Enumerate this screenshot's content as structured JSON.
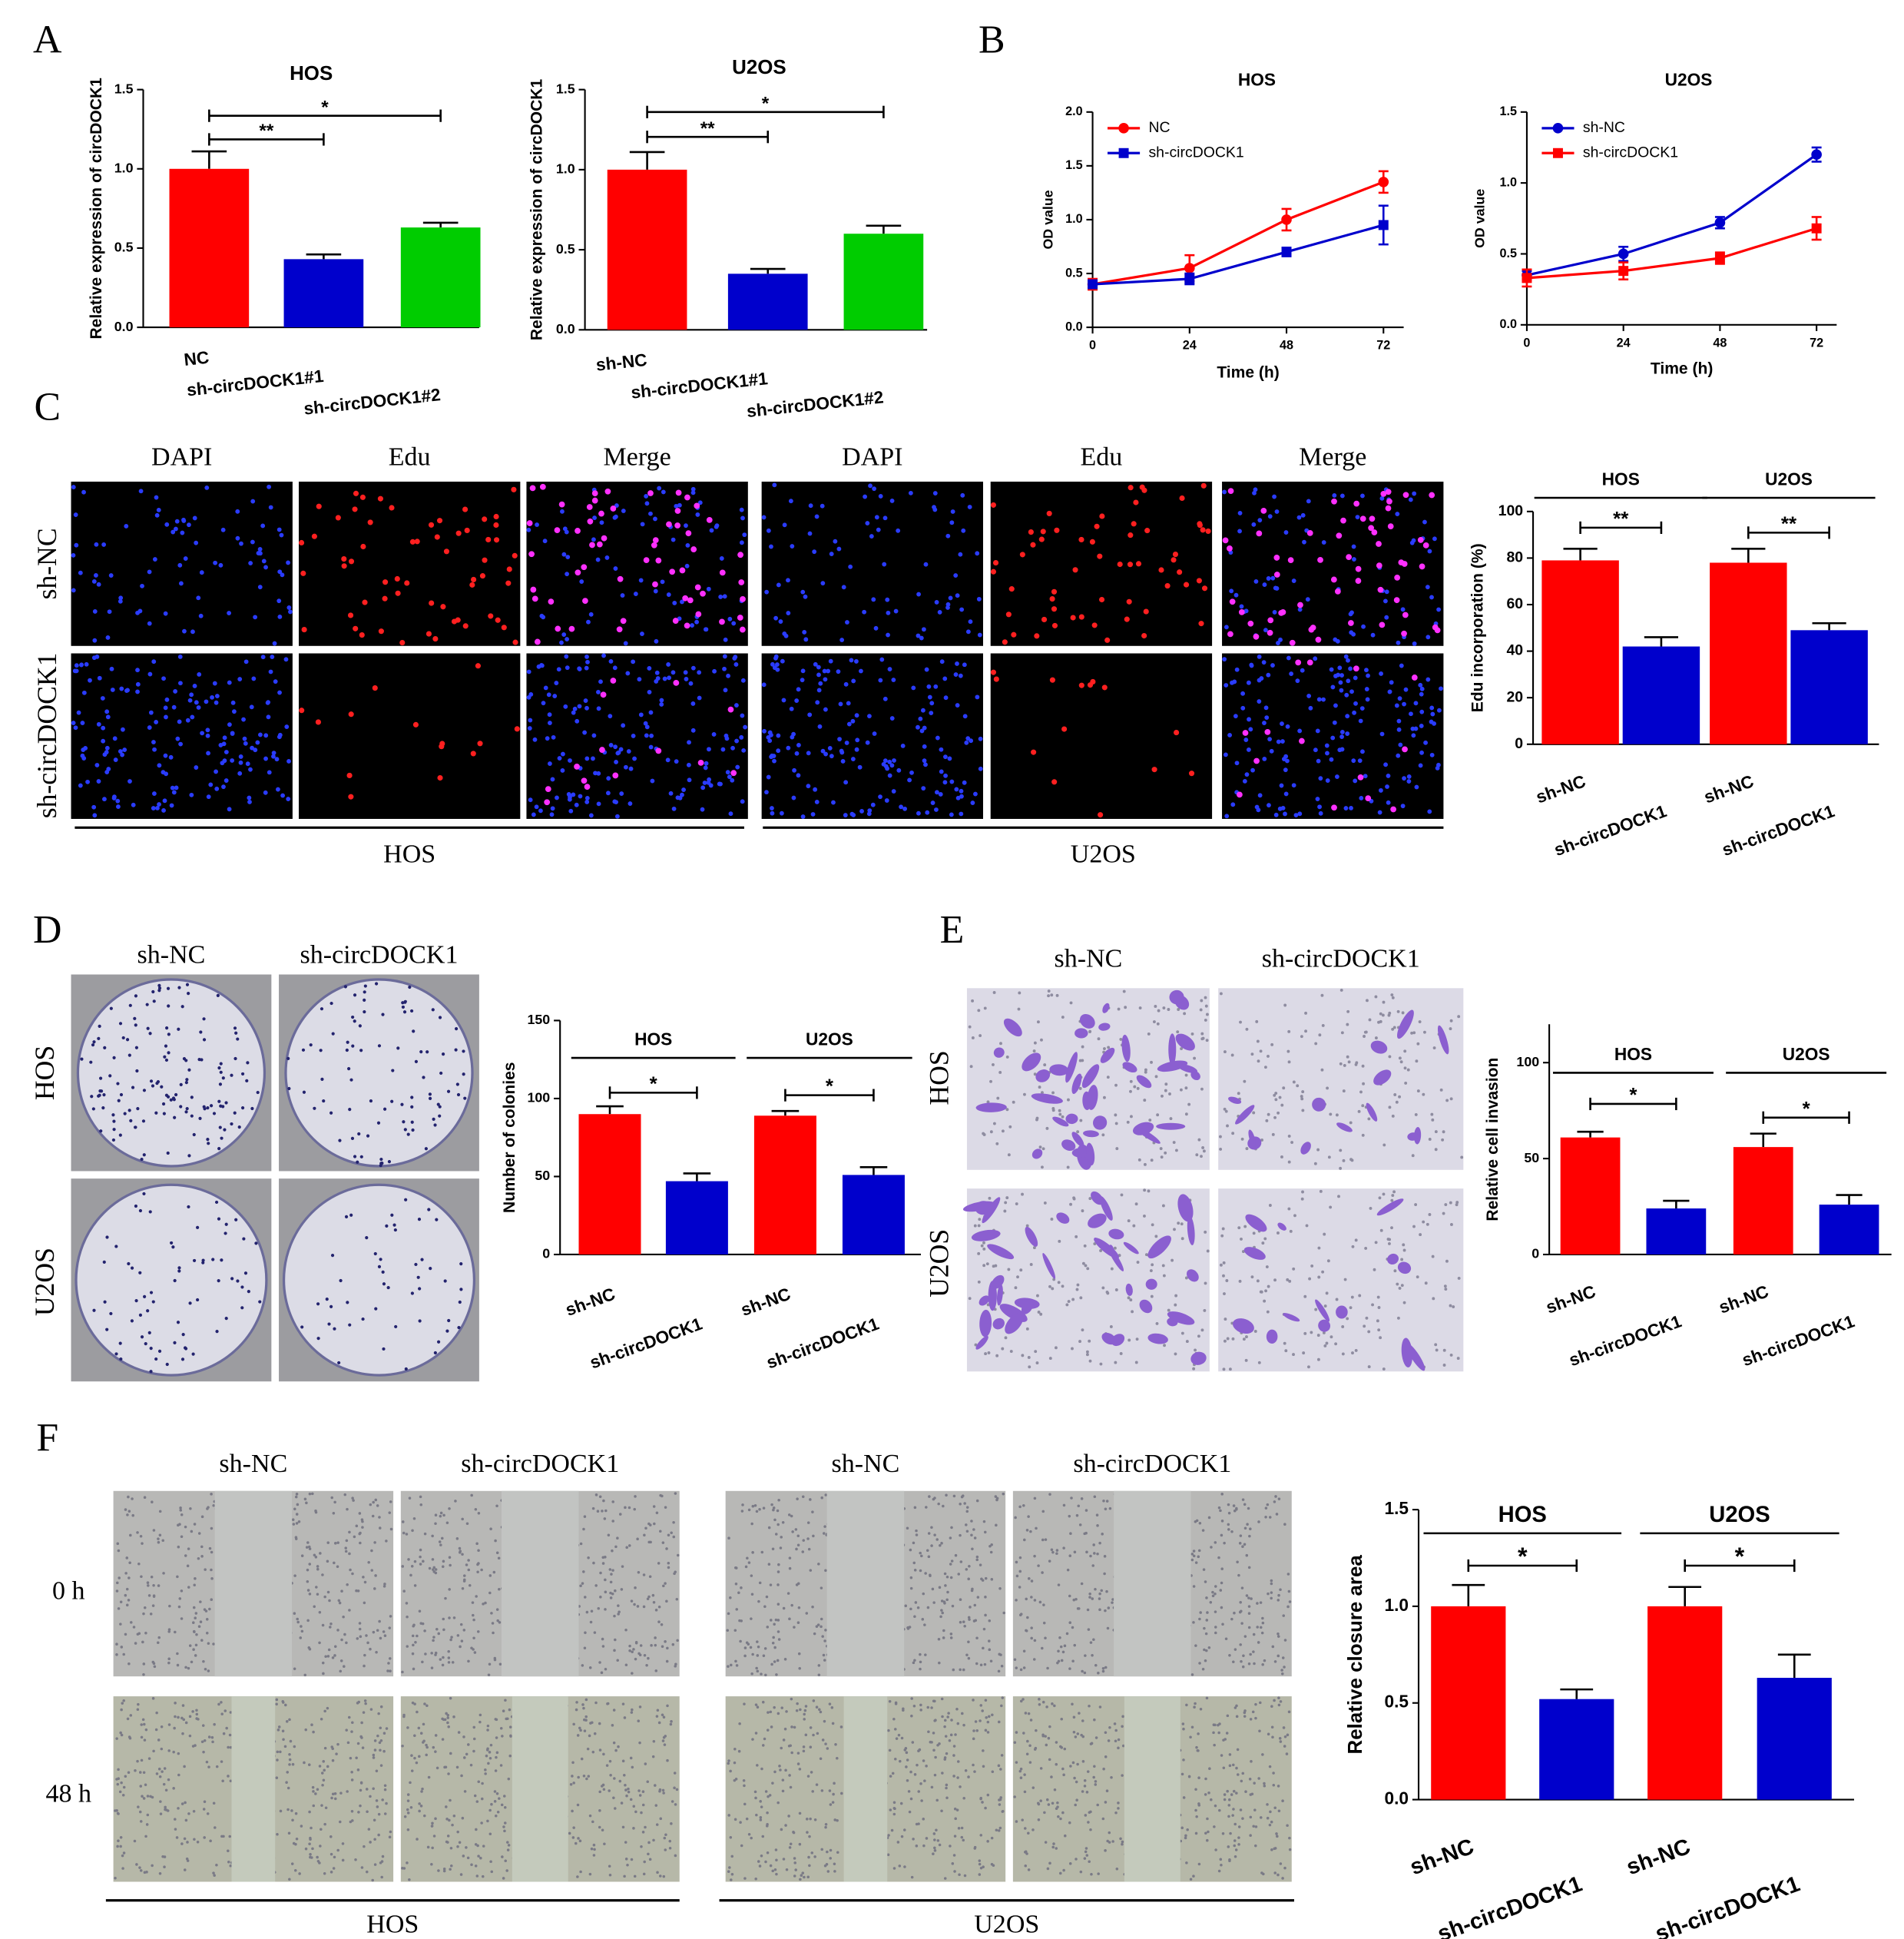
{
  "figure": {
    "panels": [
      "A",
      "B",
      "C",
      "D",
      "E",
      "F"
    ],
    "edu": {
      "columns": [
        "DAPI",
        "Edu",
        "Merge",
        "DAPI",
        "Edu",
        "Merge"
      ],
      "rows": [
        "sh-NC",
        "sh-circDOCK1"
      ],
      "groups": [
        "HOS",
        "U2OS"
      ]
    },
    "colony": {
      "columns": [
        "sh-NC",
        "sh-circDOCK1"
      ],
      "rows": [
        "HOS",
        "U2OS"
      ]
    },
    "invasion": {
      "columns": [
        "sh-NC",
        "sh-circDOCK1"
      ],
      "rows": [
        "HOS",
        "U2OS"
      ]
    },
    "wound": {
      "columns": [
        "sh-NC",
        "sh-circDOCK1",
        "sh-NC",
        "sh-circDOCK1"
      ],
      "rows": [
        "0 h",
        "48 h"
      ],
      "groups": [
        "HOS",
        "U2OS"
      ]
    }
  },
  "chart_data": [
    {
      "type": "bar",
      "title": "HOS",
      "ylabel": "Relative expression of circDOCK1",
      "categories": [
        "NC",
        "sh-circDOCK1#1",
        "sh-circDOCK1#2"
      ],
      "values": [
        1.0,
        0.43,
        0.63
      ],
      "errors": [
        0.11,
        0.03,
        0.03
      ],
      "colors": [
        "#ff0000",
        "#0000cc",
        "#00cc00"
      ],
      "ylim": [
        0,
        1.5
      ],
      "yticks": [
        {
          "value": 0,
          "label": "0.0"
        },
        0.5,
        {
          "value": 1,
          "label": "1.0"
        },
        1.5
      ],
      "comparisons": [
        {
          "label": "**",
          "pair": [
            0,
            1
          ]
        },
        {
          "label": "*",
          "pair": [
            0,
            2
          ]
        }
      ]
    },
    {
      "type": "bar",
      "title": "U2OS",
      "ylabel": "Relative expression of circDOCK1",
      "categories": [
        "sh-NC",
        "sh-circDOCK1#1",
        "sh-circDOCK1#2"
      ],
      "values": [
        1.0,
        0.35,
        0.6
      ],
      "errors": [
        0.11,
        0.03,
        0.05
      ],
      "colors": [
        "#ff0000",
        "#0000cc",
        "#00cc00"
      ],
      "ylim": [
        0,
        1.5
      ],
      "yticks": [
        {
          "value": 0,
          "label": "0.0"
        },
        0.5,
        {
          "value": 1,
          "label": "1.0"
        },
        1.5
      ],
      "comparisons": [
        {
          "label": "**",
          "pair": [
            0,
            1
          ]
        },
        {
          "label": "*",
          "pair": [
            0,
            2
          ]
        }
      ]
    },
    {
      "type": "line",
      "title": "HOS",
      "xlabel": "Time (h)",
      "ylabel": "OD value",
      "x": [
        0,
        24,
        48,
        72
      ],
      "xlim": [
        0,
        77
      ],
      "xticks": [
        0,
        24,
        48,
        72
      ],
      "ylim": [
        0,
        2
      ],
      "yticks": [
        {
          "value": 0,
          "label": "0.0"
        },
        0.5,
        {
          "value": 1,
          "label": "1.0"
        },
        1.5,
        {
          "value": 2,
          "label": "2.0"
        }
      ],
      "legend": "upper left",
      "series": [
        {
          "name": "NC",
          "color": "#ff0000",
          "marker": "circle",
          "values": [
            0.4,
            0.55,
            1.0,
            1.35
          ],
          "errors": [
            0.05,
            0.12,
            0.1,
            0.1
          ]
        },
        {
          "name": "sh-circDOCK1",
          "color": "#0000cc",
          "marker": "square",
          "values": [
            0.4,
            0.45,
            0.7,
            0.95
          ],
          "errors": [
            0.03,
            0.05,
            0.04,
            0.18
          ]
        }
      ]
    },
    {
      "type": "line",
      "title": "U2OS",
      "xlabel": "Time (h)",
      "ylabel": "OD value",
      "x": [
        0,
        24,
        48,
        72
      ],
      "xlim": [
        0,
        77
      ],
      "xticks": [
        0,
        24,
        48,
        72
      ],
      "ylim": [
        0,
        1.5
      ],
      "yticks": [
        {
          "value": 0,
          "label": "0.0"
        },
        0.5,
        {
          "value": 1,
          "label": "1.0"
        },
        1.5
      ],
      "legend": "upper left",
      "series": [
        {
          "name": "sh-NC",
          "color": "#0000cc",
          "marker": "circle",
          "values": [
            0.35,
            0.5,
            0.72,
            1.2
          ],
          "errors": [
            0.03,
            0.05,
            0.04,
            0.05
          ]
        },
        {
          "name": "sh-circDOCK1",
          "color": "#ff0000",
          "marker": "square",
          "values": [
            0.33,
            0.38,
            0.47,
            0.68
          ],
          "errors": [
            0.06,
            0.06,
            0.04,
            0.08
          ]
        }
      ]
    },
    {
      "type": "bar",
      "ylabel": "Edu incorporation (%)",
      "categories": [
        "sh-NC",
        "sh-circDOCK1",
        "sh-NC",
        "sh-circDOCK1"
      ],
      "values": [
        79,
        42,
        78,
        49
      ],
      "errors": [
        5,
        4,
        6,
        3
      ],
      "colors": [
        "#ff0000",
        "#0000cc",
        "#ff0000",
        "#0000cc"
      ],
      "ylim": [
        0,
        100
      ],
      "yticks": [
        0,
        20,
        40,
        60,
        80,
        100
      ],
      "groups": [
        {
          "name": "HOS",
          "members": [
            0,
            1
          ]
        },
        {
          "name": "U2OS",
          "members": [
            2,
            3
          ]
        }
      ],
      "comparisons": [
        {
          "label": "**",
          "pair": [
            0,
            1
          ]
        },
        {
          "label": "**",
          "pair": [
            2,
            3
          ]
        }
      ]
    },
    {
      "type": "bar",
      "ylabel": "Number of colonies",
      "categories": [
        "sh-NC",
        "sh-circDOCK1",
        "sh-NC",
        "sh-circDOCK1"
      ],
      "values": [
        90,
        47,
        89,
        51
      ],
      "errors": [
        5,
        5,
        3,
        5
      ],
      "colors": [
        "#ff0000",
        "#0000cc",
        "#ff0000",
        "#0000cc"
      ],
      "ylim": [
        0,
        150
      ],
      "yticks": [
        0,
        50,
        100,
        150
      ],
      "groups": [
        {
          "name": "HOS",
          "members": [
            0,
            1
          ]
        },
        {
          "name": "U2OS",
          "members": [
            2,
            3
          ]
        }
      ],
      "comparisons": [
        {
          "label": "*",
          "pair": [
            0,
            1
          ]
        },
        {
          "label": "*",
          "pair": [
            2,
            3
          ]
        }
      ]
    },
    {
      "type": "bar",
      "ylabel": "Relative cell invasion",
      "categories": [
        "sh-NC",
        "sh-circDOCK1",
        "sh-NC",
        "sh-circDOCK1"
      ],
      "values": [
        61,
        24,
        56,
        26
      ],
      "errors": [
        3,
        4,
        7,
        5
      ],
      "colors": [
        "#ff0000",
        "#0000cc",
        "#ff0000",
        "#0000cc"
      ],
      "ylim": [
        0,
        120
      ],
      "yticks": [
        0,
        50,
        100
      ],
      "groups": [
        {
          "name": "HOS",
          "members": [
            0,
            1
          ]
        },
        {
          "name": "U2OS",
          "members": [
            2,
            3
          ]
        }
      ],
      "comparisons": [
        {
          "label": "*",
          "pair": [
            0,
            1
          ]
        },
        {
          "label": "*",
          "pair": [
            2,
            3
          ]
        }
      ]
    },
    {
      "type": "bar",
      "ylabel": "Relative closure area",
      "categories": [
        "sh-NC",
        "sh-circDOCK1",
        "sh-NC",
        "sh-circDOCK1"
      ],
      "values": [
        1.0,
        0.52,
        1.0,
        0.63
      ],
      "errors": [
        0.11,
        0.05,
        0.1,
        0.12
      ],
      "colors": [
        "#ff0000",
        "#0000cc",
        "#ff0000",
        "#0000cc"
      ],
      "ylim": [
        0,
        1.5
      ],
      "yticks": [
        {
          "value": 0,
          "label": "0.0"
        },
        0.5,
        {
          "value": 1,
          "label": "1.0"
        },
        1.5
      ],
      "groups": [
        {
          "name": "HOS",
          "members": [
            0,
            1
          ]
        },
        {
          "name": "U2OS",
          "members": [
            2,
            3
          ]
        }
      ],
      "comparisons": [
        {
          "label": "*",
          "pair": [
            0,
            1
          ]
        },
        {
          "label": "*",
          "pair": [
            2,
            3
          ]
        }
      ]
    }
  ]
}
